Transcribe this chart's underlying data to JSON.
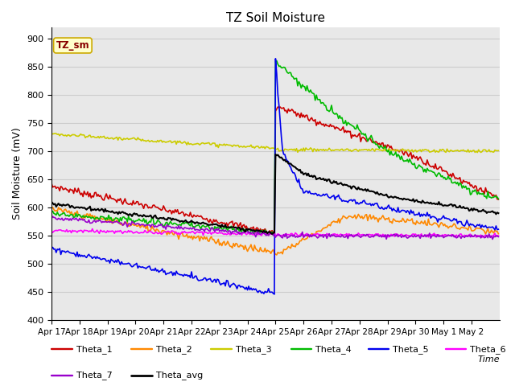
{
  "title": "TZ Soil Moisture",
  "ylabel": "Soil Moisture (mV)",
  "xlabel": "Time",
  "ylim": [
    400,
    920
  ],
  "xlim": [
    0,
    384
  ],
  "plot_bg": "#e8e8e8",
  "tick_labels": [
    "Apr 17",
    "Apr 18",
    "Apr 19",
    "Apr 20",
    "Apr 21",
    "Apr 22",
    "Apr 23",
    "Apr 24",
    "Apr 25",
    "Apr 26",
    "Apr 27",
    "Apr 28",
    "Apr 29",
    "Apr 30",
    "May 1",
    "May 2"
  ],
  "tick_positions": [
    0,
    24,
    48,
    72,
    96,
    120,
    144,
    168,
    192,
    216,
    240,
    264,
    288,
    312,
    336,
    360
  ],
  "series": {
    "Theta_1": {
      "color": "#cc0000",
      "lw": 1.2
    },
    "Theta_2": {
      "color": "#ff8800",
      "lw": 1.2
    },
    "Theta_3": {
      "color": "#cccc00",
      "lw": 1.2
    },
    "Theta_4": {
      "color": "#00bb00",
      "lw": 1.2
    },
    "Theta_5": {
      "color": "#0000ee",
      "lw": 1.2
    },
    "Theta_6": {
      "color": "#ff00ff",
      "lw": 1.2
    },
    "Theta_7": {
      "color": "#9900cc",
      "lw": 1.2
    },
    "Theta_avg": {
      "color": "#000000",
      "lw": 1.5
    }
  },
  "label_box": {
    "text": "TZ_sm",
    "facecolor": "#ffffcc",
    "edgecolor": "#ccaa00",
    "textcolor": "#880000"
  },
  "yticks": [
    400,
    450,
    500,
    550,
    600,
    650,
    700,
    750,
    800,
    850,
    900
  ],
  "grid_color": "#cccccc",
  "legend_row1": [
    "Theta_1",
    "Theta_2",
    "Theta_3",
    "Theta_4",
    "Theta_5",
    "Theta_6"
  ],
  "legend_row2": [
    "Theta_7",
    "Theta_avg"
  ]
}
